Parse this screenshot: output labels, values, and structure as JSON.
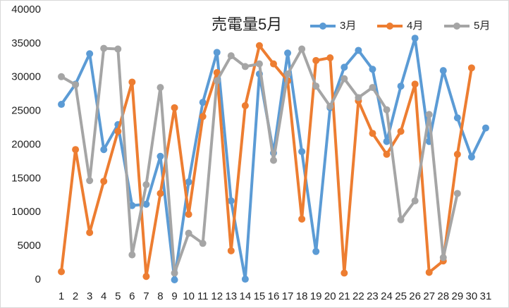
{
  "chart_data": {
    "type": "line",
    "title": "売電量5月",
    "categories": [
      "1",
      "2",
      "3",
      "4",
      "5",
      "6",
      "7",
      "8",
      "9",
      "10",
      "11",
      "12",
      "13",
      "14",
      "15",
      "16",
      "17",
      "18",
      "19",
      "20",
      "21",
      "22",
      "23",
      "24",
      "25",
      "26",
      "27",
      "28",
      "29",
      "30",
      "31"
    ],
    "series": [
      {
        "name": "3月",
        "color": "#5b9bd5",
        "values": [
          26000,
          29000,
          33500,
          19300,
          23000,
          11000,
          11200,
          18300,
          0,
          14500,
          26300,
          33700,
          11700,
          100,
          30500,
          18800,
          33600,
          19000,
          4200,
          25500,
          31500,
          34000,
          31200,
          20500,
          28700,
          35800,
          20500,
          31000,
          24000,
          18200,
          22500
        ]
      },
      {
        "name": "4月",
        "color": "#ed7d31",
        "values": [
          1200,
          19300,
          7000,
          14600,
          22000,
          29300,
          500,
          12800,
          25500,
          9700,
          24200,
          30700,
          4300,
          25800,
          34700,
          32000,
          29500,
          9000,
          32500,
          32900,
          1000,
          26500,
          21700,
          18600,
          22000,
          29000,
          1100,
          2800,
          18600,
          31400,
          null
        ]
      },
      {
        "name": "5月",
        "color": "#a5a5a5",
        "values": [
          30100,
          28900,
          14700,
          34300,
          34200,
          3700,
          14100,
          28500,
          1000,
          6900,
          5400,
          29500,
          33200,
          31600,
          32000,
          17700,
          30500,
          34200,
          28700,
          25700,
          29800,
          27000,
          28500,
          25200,
          8900,
          11700,
          24500,
          3300,
          12800,
          null,
          null
        ]
      }
    ],
    "ylim": [
      0,
      40000
    ],
    "yticks": [
      0,
      5000,
      10000,
      15000,
      20000,
      25000,
      30000,
      35000,
      40000
    ],
    "grid": false
  }
}
